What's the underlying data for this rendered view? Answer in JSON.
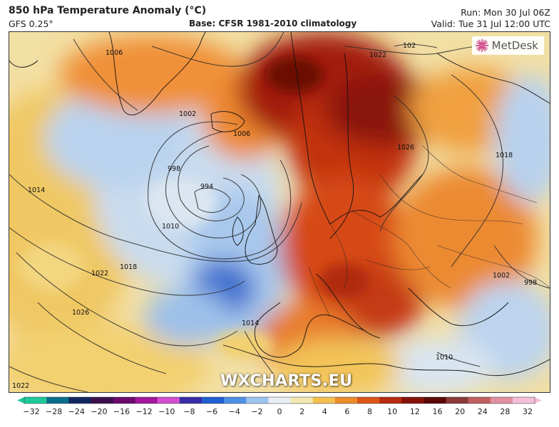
{
  "header": {
    "title": "850 hPa Temperature Anomaly (°C)",
    "model": "GFS 0.25°",
    "base": "Base: CFSR 1981-2010 climatology",
    "run": "Run: Mon 30 Jul 06Z",
    "valid": "Valid: Tue 31 Jul 12:00 UTC"
  },
  "logo": {
    "text": "MetDesk",
    "icon": "metdesk-starburst-icon",
    "color": "#c03070"
  },
  "watermark": "WXCHARTS.EU",
  "colorbar": {
    "ticks": [
      "−32",
      "−28",
      "−24",
      "−20",
      "−16",
      "−12",
      "−10",
      "−8",
      "−6",
      "−4",
      "−2",
      "0",
      "2",
      "4",
      "6",
      "8",
      "10",
      "12",
      "16",
      "20",
      "24",
      "28",
      "32"
    ],
    "colors": [
      "#1fc99a",
      "#0b6f8a",
      "#10285e",
      "#3a0f4a",
      "#6a0a6e",
      "#a3179c",
      "#d24fd0",
      "#3a2ca8",
      "#1f5fd0",
      "#4f90e6",
      "#9cc4ee",
      "#e8eef4",
      "#f4e7b0",
      "#f3c050",
      "#ec8c2a",
      "#dc5416",
      "#b82a10",
      "#851208",
      "#5a0808",
      "#8a3a3a",
      "#c06060",
      "#e090a0",
      "#f4c0d8"
    ]
  },
  "contour_labels": [
    {
      "label": "1006"
    },
    {
      "label": "1002"
    },
    {
      "label": "998"
    },
    {
      "label": "994"
    },
    {
      "label": "1006"
    },
    {
      "label": "1014"
    },
    {
      "label": "1010"
    },
    {
      "label": "1018"
    },
    {
      "label": "1022"
    },
    {
      "label": "1026"
    },
    {
      "label": "1022"
    },
    {
      "label": "1014"
    },
    {
      "label": "1010"
    },
    {
      "label": "1022"
    },
    {
      "label": "1026"
    },
    {
      "label": "1018"
    },
    {
      "label": "1002"
    },
    {
      "label": "998"
    },
    {
      "label": "102"
    }
  ]
}
